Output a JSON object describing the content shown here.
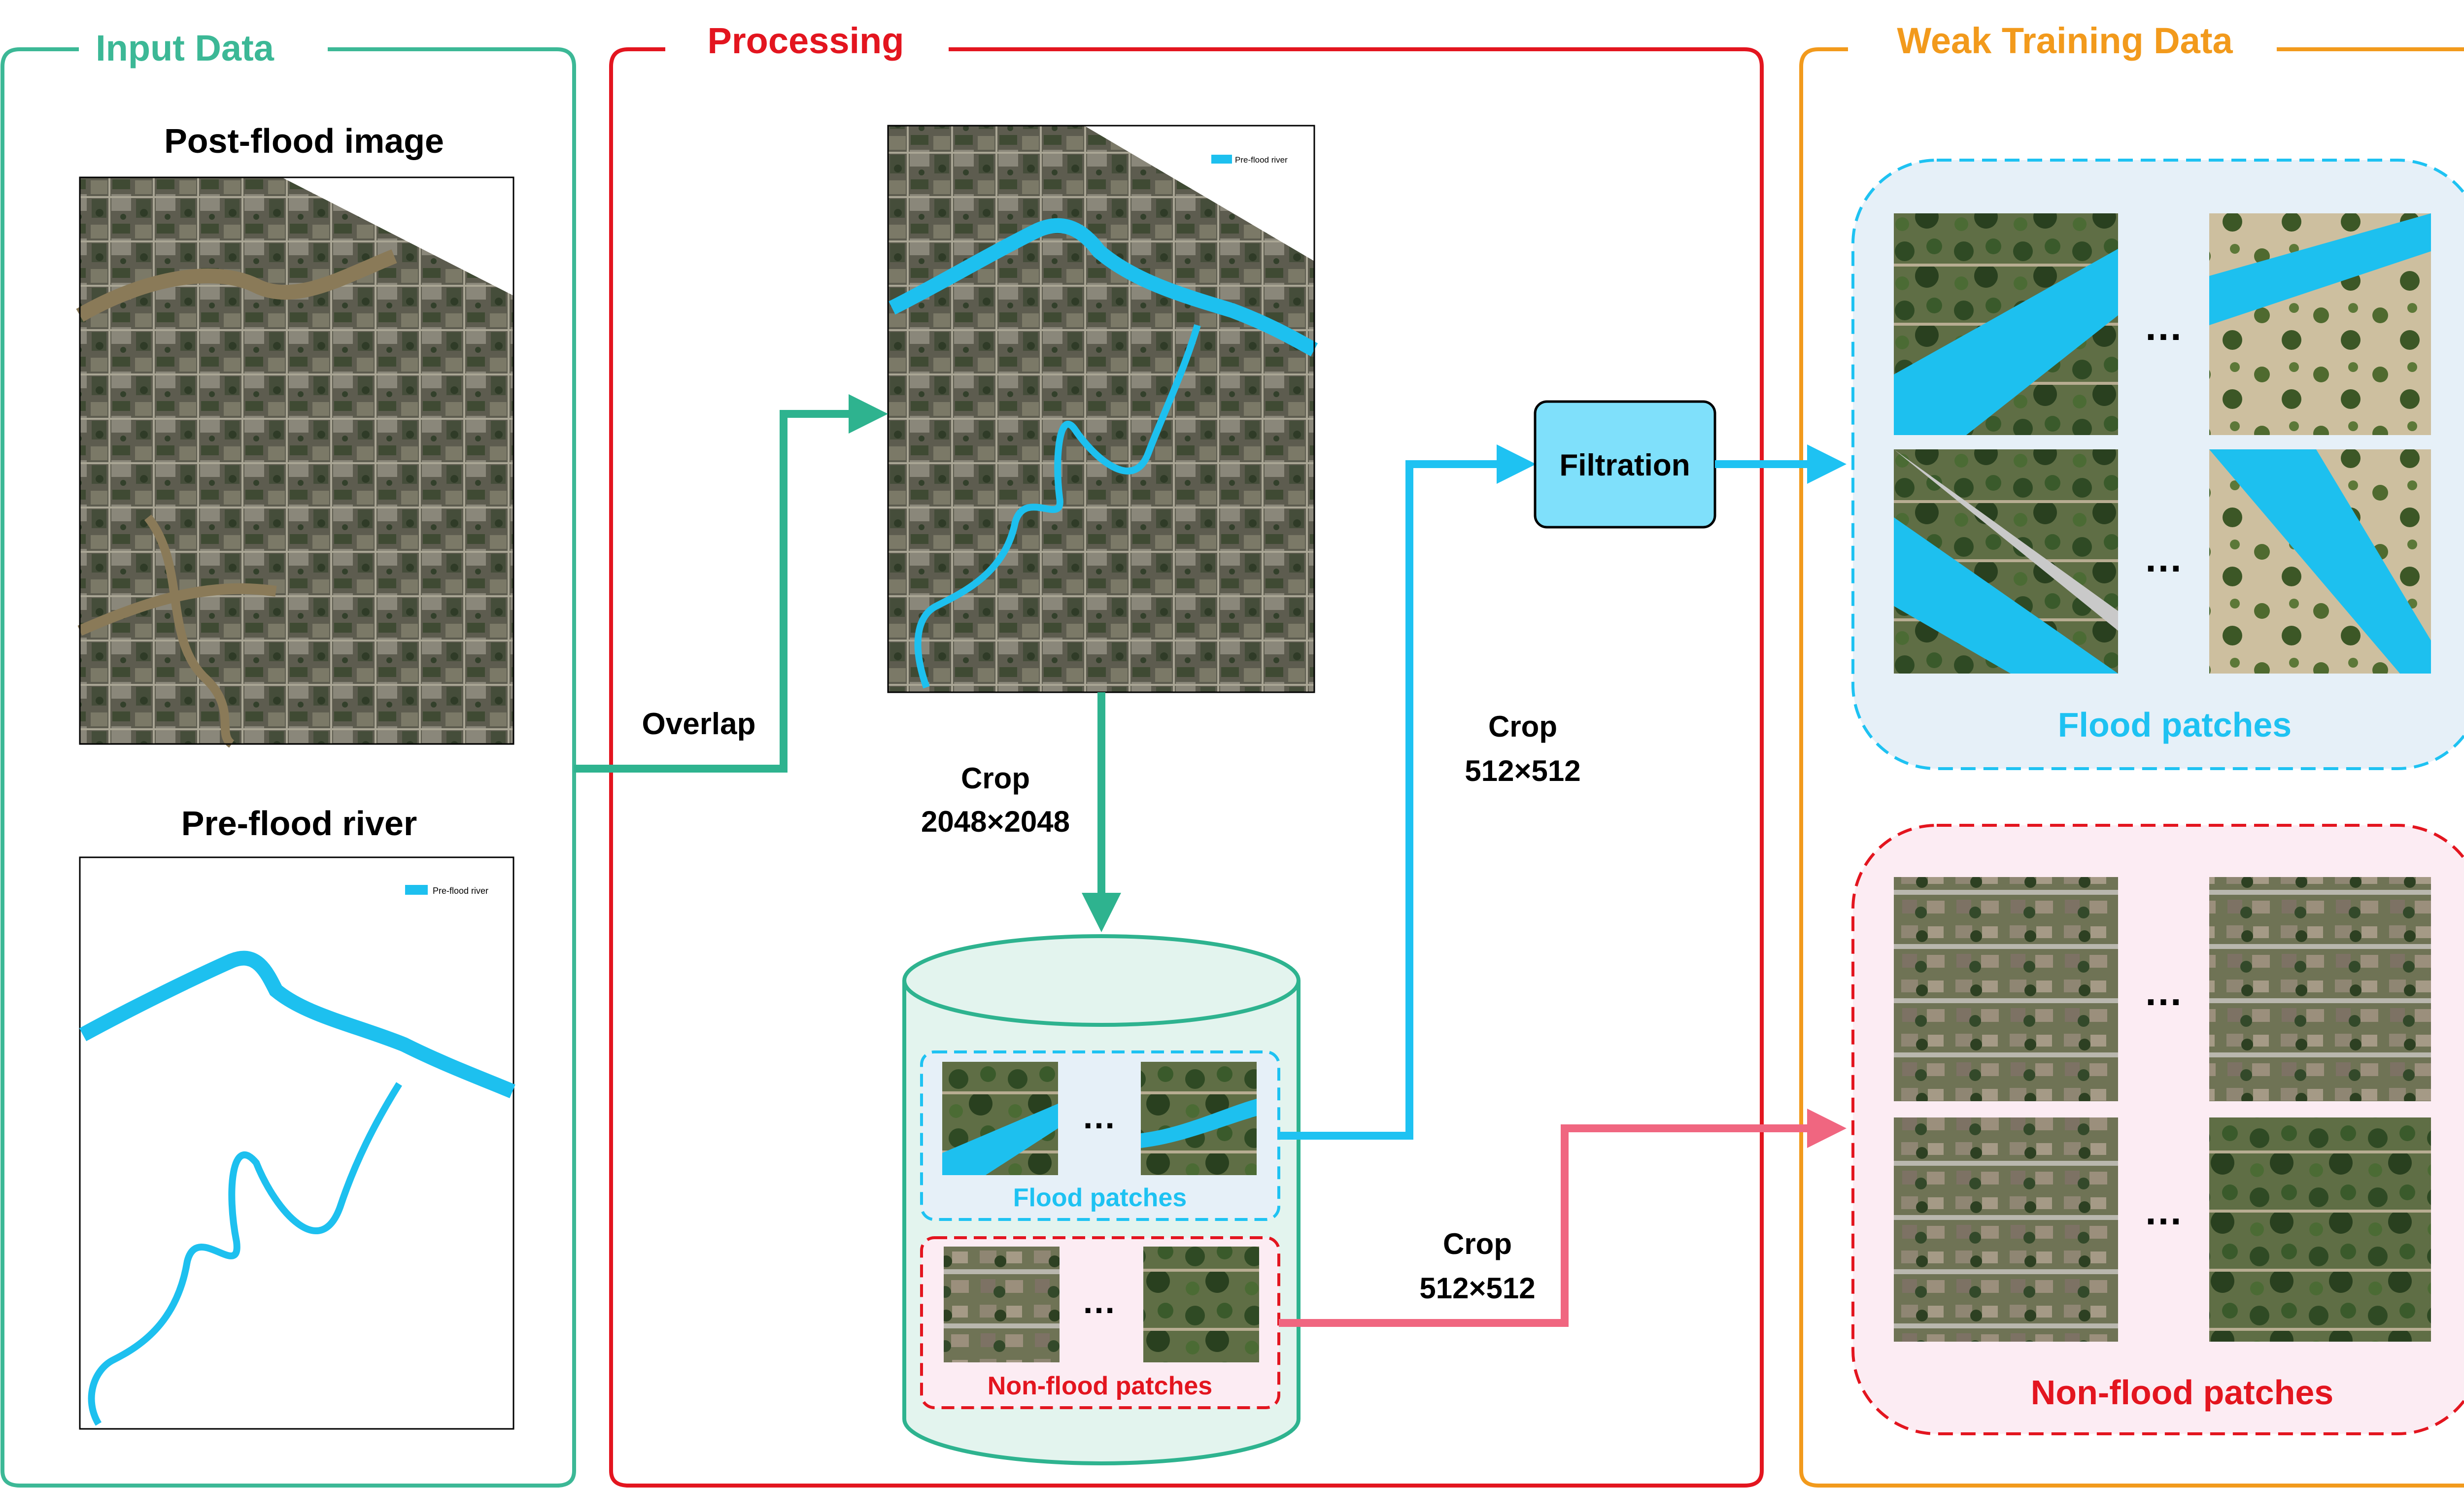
{
  "panels": {
    "input": {
      "title": "Input Data",
      "color": "#3cb896"
    },
    "processing": {
      "title": "Processing",
      "color": "#e3151f"
    },
    "weak": {
      "title": "Weak Training Data",
      "color": "#f29a1c"
    }
  },
  "input_data": {
    "post_flood_label": "Post-flood image",
    "pre_flood_label": "Pre-flood river",
    "legend_text": "Pre-flood river"
  },
  "processing": {
    "overlap_label": "Overlap",
    "crop_large": {
      "line1": "Crop",
      "line2": "2048×2048"
    },
    "crop_flood": {
      "line1": "Crop",
      "line2": "512×512"
    },
    "crop_nonflood": {
      "line1": "Crop",
      "line2": "512×512"
    },
    "filtration_label": "Filtration",
    "db_flood_label": "Flood patches",
    "db_nonflood_label": "Non-flood patches",
    "ellipsis": "…"
  },
  "weak_training": {
    "flood_label": "Flood patches",
    "nonflood_label": "Non-flood patches",
    "ellipsis": "…"
  },
  "colors": {
    "green_arrow": "#2eb38f",
    "blue_arrow": "#1ec2f2",
    "pink_arrow": "#f06680",
    "water": "#1dc0ef",
    "flood_box": "#e6f0f8",
    "nonflood_box": "#fcecf3",
    "db_fill": "#e3f4ee"
  }
}
